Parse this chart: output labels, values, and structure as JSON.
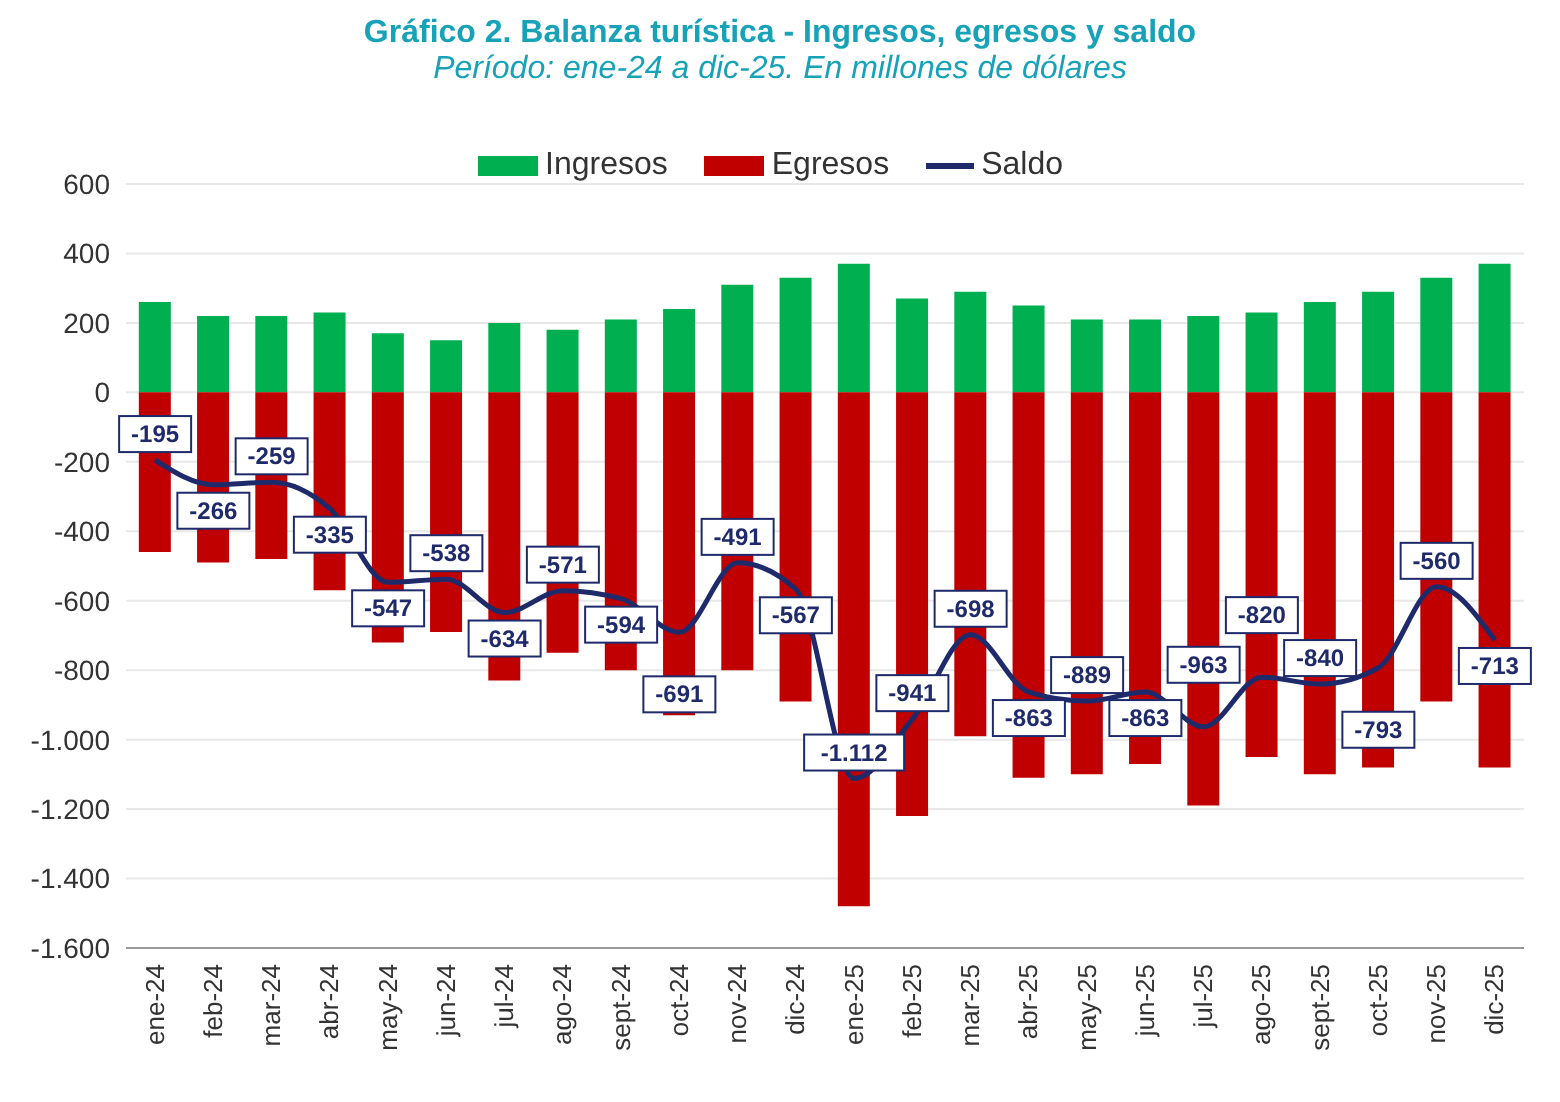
{
  "chart_data": {
    "type": "bar",
    "title": "Gráfico 2. Balanza turística - Ingresos, egresos y saldo",
    "subtitle": "Período: ene-24 a dic-25. En millones de dólares",
    "categories": [
      "ene-24",
      "feb-24",
      "mar-24",
      "abr-24",
      "may-24",
      "jun-24",
      "jul-24",
      "ago-24",
      "sept-24",
      "oct-24",
      "nov-24",
      "dic-24",
      "ene-25",
      "feb-25",
      "mar-25",
      "abr-25",
      "may-25",
      "jun-25",
      "jul-25",
      "ago-25",
      "sept-25",
      "oct-25",
      "nov-25",
      "dic-25"
    ],
    "stacked": true,
    "series": [
      {
        "name": "Ingresos",
        "color": "#00b050",
        "values": [
          260,
          220,
          220,
          230,
          170,
          150,
          200,
          180,
          210,
          240,
          310,
          330,
          370,
          270,
          290,
          250,
          210,
          210,
          220,
          230,
          260,
          290,
          330,
          370
        ]
      },
      {
        "name": "Egresos",
        "color": "#c00000",
        "values": [
          -460,
          -490,
          -480,
          -570,
          -720,
          -690,
          -830,
          -750,
          -800,
          -930,
          -800,
          -890,
          -1480,
          -1220,
          -990,
          -1110,
          -1100,
          -1070,
          -1190,
          -1050,
          -1100,
          -1080,
          -890,
          -1080
        ]
      },
      {
        "name": "Saldo",
        "type": "line",
        "color": "#1f2a6b",
        "data_labels": true,
        "values": [
          -195,
          -266,
          -259,
          -335,
          -547,
          -538,
          -634,
          -571,
          -594,
          -691,
          -491,
          -567,
          -1112,
          -941,
          -698,
          -863,
          -889,
          -863,
          -963,
          -820,
          -840,
          -793,
          -560,
          -713
        ],
        "value_labels": [
          "-195",
          "-266",
          "-259",
          "-335",
          "-547",
          "-538",
          "-634",
          "-571",
          "-594",
          "-691",
          "-491",
          "-567",
          "-1.112",
          "-941",
          "-698",
          "-863",
          "-889",
          "-863",
          "-963",
          "-820",
          "-840",
          "-793",
          "-560",
          "-713"
        ]
      }
    ],
    "ylim": [
      -1600,
      600
    ],
    "yticks": [
      {
        "value": -1600,
        "label": "-1.600"
      },
      {
        "value": -1400,
        "label": "-1.400"
      },
      {
        "value": -1200,
        "label": "-1.200"
      },
      {
        "value": -1000,
        "label": "-1.000"
      },
      -800,
      -600,
      -400,
      -200,
      0,
      200,
      400,
      600
    ],
    "grid": "y",
    "legend": "top",
    "marker": "none",
    "line_style": "solid"
  }
}
